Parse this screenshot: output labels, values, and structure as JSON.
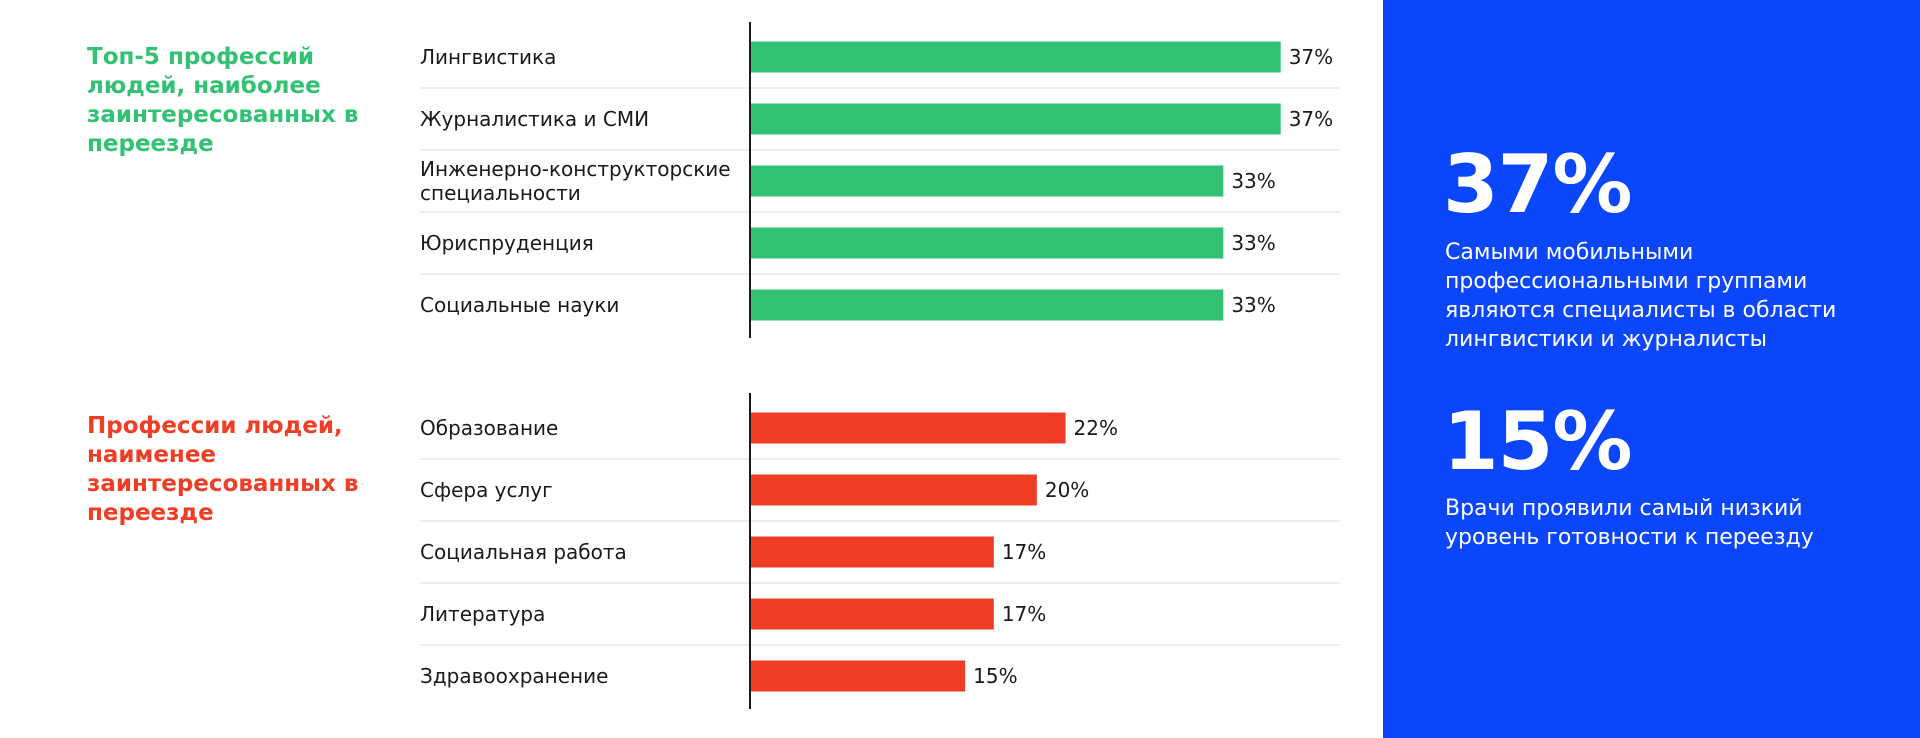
{
  "titles": {
    "top": "Топ-5 профессий людей, наиболее заинтересованных в переезде",
    "bottom": "Профессии людей, наименее заинтересованных в переезде"
  },
  "colors": {
    "green": "#33c173",
    "red": "#ef3e25",
    "panel_blue": "#0b46fa",
    "axis": "#1a1a1a",
    "divider": "#dcdcdc"
  },
  "chart_data": [
    {
      "type": "bar",
      "orientation": "horizontal",
      "title": "Топ-5 профессий людей, наиболее заинтересованных в переезде",
      "categories": [
        [
          "Лингвистика"
        ],
        [
          "Журналистика и СМИ"
        ],
        [
          "Инженерно-конструкторские",
          "специальности"
        ],
        [
          "Юриспруденция"
        ],
        [
          "Социальные науки"
        ]
      ],
      "values": [
        37,
        37,
        33,
        33,
        33
      ],
      "value_labels": [
        "37%",
        "37%",
        "33%",
        "33%",
        "33%"
      ],
      "xlim": [
        0,
        37.3
      ],
      "color": "#33c173",
      "grid": false
    },
    {
      "type": "bar",
      "orientation": "horizontal",
      "title": "Профессии людей, наименее заинтересованных в переезде",
      "categories": [
        [
          "Образование"
        ],
        [
          "Сфера услуг"
        ],
        [
          "Социальная работа"
        ],
        [
          "Литература"
        ],
        [
          "Здравоохранение"
        ]
      ],
      "values": [
        22,
        20,
        17,
        17,
        15
      ],
      "value_labels": [
        "22%",
        "20%",
        "17%",
        "17%",
        "15%"
      ],
      "xlim": [
        0,
        37.3
      ],
      "color": "#ef3e25",
      "grid": false
    }
  ],
  "side_panel": {
    "stat1_value": "37%",
    "stat1_text": "Самыми мобильными профессиональными группами являются специалисты в области лингвистики и журналисты",
    "stat2_value": "15%",
    "stat2_text": "Врачи проявили самый низкий уровень готовности к переезду"
  }
}
